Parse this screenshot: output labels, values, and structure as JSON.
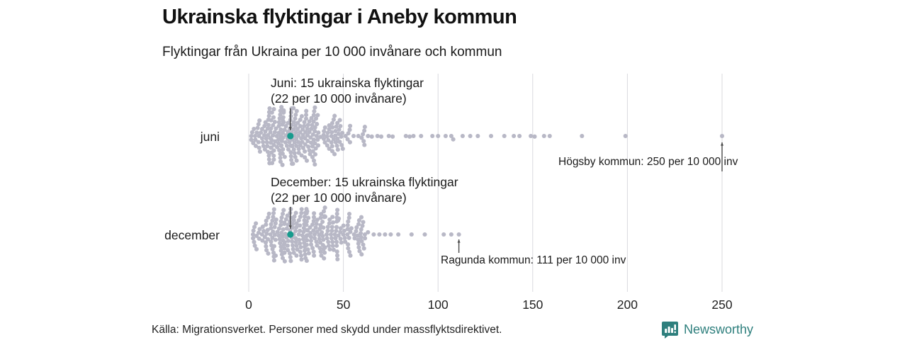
{
  "header": {
    "title": "Ukrainska flyktingar i Aneby kommun",
    "subtitle": "Flyktingar från Ukraina per 10 000 invånare och kommun"
  },
  "footer": {
    "source": "Källa: Migrationsverket. Personer med skydd under massflyktsdirektivet.",
    "brand": "Newsworthy"
  },
  "chart_data": {
    "type": "beeswarm",
    "title": "Ukrainska flyktingar i Aneby kommun",
    "subtitle": "Flyktingar från Ukraina per 10 000 invånare och kommun",
    "xlabel": "",
    "xlim": [
      0,
      260
    ],
    "x_ticks": [
      0,
      50,
      100,
      150,
      200,
      250
    ],
    "grid": true,
    "unit": "flyktingar per 10 000 invånare",
    "rows": [
      {
        "label": "juni",
        "highlight": {
          "name": "Aneby",
          "value": 22,
          "refugees": 15,
          "annotation_line1": "Juni: 15 ukrainska flyktingar",
          "annotation_line2": "(22 per 10 000 invånare)"
        },
        "outlier": {
          "label": "Högsby kommun: 250 per 10 000 inv",
          "value": 250
        },
        "tail_values": [
          63,
          65,
          68,
          70,
          74,
          76,
          83,
          85,
          87,
          91,
          97,
          100,
          104,
          107,
          108,
          113,
          117,
          121,
          128,
          135,
          140,
          143,
          149,
          151,
          156,
          159,
          176,
          199,
          250
        ],
        "bulk": {
          "count": 261,
          "quantiles": [
            [
              0,
              1
            ],
            [
              0.08,
              8
            ],
            [
              0.25,
              15
            ],
            [
              0.5,
              25
            ],
            [
              0.75,
              37
            ],
            [
              0.92,
              50
            ],
            [
              1,
              62
            ]
          ]
        }
      },
      {
        "label": "december",
        "highlight": {
          "name": "Aneby",
          "value": 22,
          "refugees": 15,
          "annotation_line1": "December: 15 ukrainska flyktingar",
          "annotation_line2": "(22 per 10 000 invånare)"
        },
        "outlier": {
          "label": "Ragunda kommun: 111 per 10 000 inv",
          "value": 111
        },
        "tail_values": [
          63,
          66,
          69,
          72,
          75,
          79,
          86,
          93,
          103,
          107,
          111
        ],
        "bulk": {
          "count": 279,
          "quantiles": [
            [
              0,
              2
            ],
            [
              0.08,
              9
            ],
            [
              0.25,
              17
            ],
            [
              0.5,
              28
            ],
            [
              0.75,
              41
            ],
            [
              0.92,
              53
            ],
            [
              1,
              62
            ]
          ]
        }
      }
    ],
    "colors": {
      "dot": "#b8b8c6",
      "highlight": "#169b8d",
      "gridline": "#d9d9de",
      "arrow": "#4a4a4a",
      "brand_teal": "#2e7f7d"
    }
  }
}
